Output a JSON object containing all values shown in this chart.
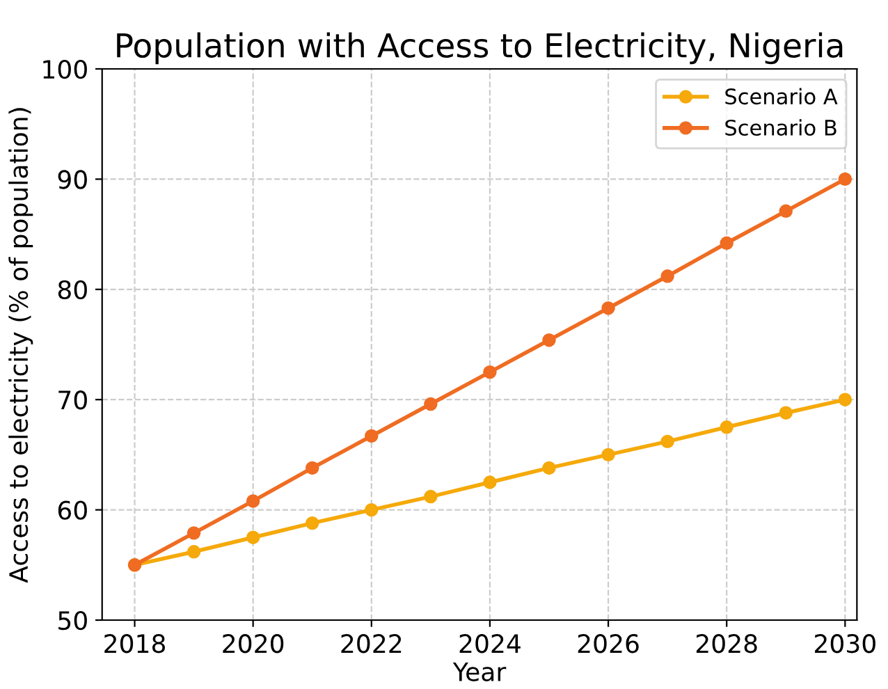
{
  "chart_data": {
    "type": "line",
    "title": "Population with Access to Electricity, Nigeria",
    "xlabel": "Year",
    "ylabel": "Access to electricity (% of population)",
    "x": [
      2018,
      2019,
      2020,
      2021,
      2022,
      2023,
      2024,
      2025,
      2026,
      2027,
      2028,
      2029,
      2030
    ],
    "series": [
      {
        "name": "Scenario A",
        "color": "#f5a90a",
        "values": [
          55,
          56.2,
          57.5,
          58.8,
          60,
          61.2,
          62.5,
          63.8,
          65,
          66.2,
          67.5,
          68.8,
          70
        ]
      },
      {
        "name": "Scenario B",
        "color": "#ef6c22",
        "values": [
          55,
          57.9,
          60.8,
          63.8,
          66.7,
          69.6,
          72.5,
          75.4,
          78.3,
          81.2,
          84.2,
          87.1,
          90
        ]
      }
    ],
    "xlim": [
      2017.45,
      2030.2
    ],
    "xticks": [
      2018,
      2020,
      2022,
      2024,
      2026,
      2028,
      2030
    ],
    "ylim": [
      50,
      100
    ],
    "yticks": [
      50,
      60,
      70,
      80,
      90,
      100
    ],
    "grid": true,
    "legend": "top right",
    "marker": "circle",
    "line_style": "solid"
  }
}
